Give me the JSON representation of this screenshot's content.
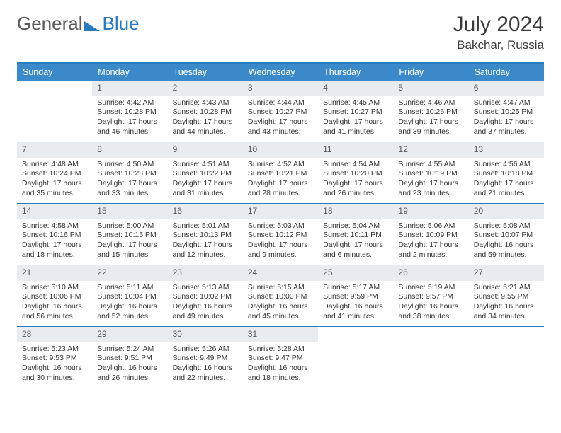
{
  "brand": {
    "part1": "General",
    "part2": "Blue"
  },
  "title": "July 2024",
  "location": "Bakchar, Russia",
  "colors": {
    "header_bg": "#3b89c9",
    "header_text": "#ffffff",
    "accent_border": "#2b7bbf",
    "daynum_bg": "#e9ecef",
    "daynum_text": "#555555",
    "body_text": "#333333",
    "background": "#ffffff"
  },
  "typography": {
    "month_title_size": 30,
    "location_size": 17,
    "day_header_size": 12.5,
    "cell_size": 10.5,
    "logo_size": 26
  },
  "layout": {
    "columns": 7,
    "rows": 5,
    "first_weekday_offset": 1
  },
  "day_names": [
    "Sunday",
    "Monday",
    "Tuesday",
    "Wednesday",
    "Thursday",
    "Friday",
    "Saturday"
  ],
  "days": [
    {
      "n": 1,
      "sr": "4:42 AM",
      "ss": "10:28 PM",
      "dl": "17 hours and 46 minutes."
    },
    {
      "n": 2,
      "sr": "4:43 AM",
      "ss": "10:28 PM",
      "dl": "17 hours and 44 minutes."
    },
    {
      "n": 3,
      "sr": "4:44 AM",
      "ss": "10:27 PM",
      "dl": "17 hours and 43 minutes."
    },
    {
      "n": 4,
      "sr": "4:45 AM",
      "ss": "10:27 PM",
      "dl": "17 hours and 41 minutes."
    },
    {
      "n": 5,
      "sr": "4:46 AM",
      "ss": "10:26 PM",
      "dl": "17 hours and 39 minutes."
    },
    {
      "n": 6,
      "sr": "4:47 AM",
      "ss": "10:25 PM",
      "dl": "17 hours and 37 minutes."
    },
    {
      "n": 7,
      "sr": "4:48 AM",
      "ss": "10:24 PM",
      "dl": "17 hours and 35 minutes."
    },
    {
      "n": 8,
      "sr": "4:50 AM",
      "ss": "10:23 PM",
      "dl": "17 hours and 33 minutes."
    },
    {
      "n": 9,
      "sr": "4:51 AM",
      "ss": "10:22 PM",
      "dl": "17 hours and 31 minutes."
    },
    {
      "n": 10,
      "sr": "4:52 AM",
      "ss": "10:21 PM",
      "dl": "17 hours and 28 minutes."
    },
    {
      "n": 11,
      "sr": "4:54 AM",
      "ss": "10:20 PM",
      "dl": "17 hours and 26 minutes."
    },
    {
      "n": 12,
      "sr": "4:55 AM",
      "ss": "10:19 PM",
      "dl": "17 hours and 23 minutes."
    },
    {
      "n": 13,
      "sr": "4:56 AM",
      "ss": "10:18 PM",
      "dl": "17 hours and 21 minutes."
    },
    {
      "n": 14,
      "sr": "4:58 AM",
      "ss": "10:16 PM",
      "dl": "17 hours and 18 minutes."
    },
    {
      "n": 15,
      "sr": "5:00 AM",
      "ss": "10:15 PM",
      "dl": "17 hours and 15 minutes."
    },
    {
      "n": 16,
      "sr": "5:01 AM",
      "ss": "10:13 PM",
      "dl": "17 hours and 12 minutes."
    },
    {
      "n": 17,
      "sr": "5:03 AM",
      "ss": "10:12 PM",
      "dl": "17 hours and 9 minutes."
    },
    {
      "n": 18,
      "sr": "5:04 AM",
      "ss": "10:11 PM",
      "dl": "17 hours and 6 minutes."
    },
    {
      "n": 19,
      "sr": "5:06 AM",
      "ss": "10:09 PM",
      "dl": "17 hours and 2 minutes."
    },
    {
      "n": 20,
      "sr": "5:08 AM",
      "ss": "10:07 PM",
      "dl": "16 hours and 59 minutes."
    },
    {
      "n": 21,
      "sr": "5:10 AM",
      "ss": "10:06 PM",
      "dl": "16 hours and 56 minutes."
    },
    {
      "n": 22,
      "sr": "5:11 AM",
      "ss": "10:04 PM",
      "dl": "16 hours and 52 minutes."
    },
    {
      "n": 23,
      "sr": "5:13 AM",
      "ss": "10:02 PM",
      "dl": "16 hours and 49 minutes."
    },
    {
      "n": 24,
      "sr": "5:15 AM",
      "ss": "10:00 PM",
      "dl": "16 hours and 45 minutes."
    },
    {
      "n": 25,
      "sr": "5:17 AM",
      "ss": "9:59 PM",
      "dl": "16 hours and 41 minutes."
    },
    {
      "n": 26,
      "sr": "5:19 AM",
      "ss": "9:57 PM",
      "dl": "16 hours and 38 minutes."
    },
    {
      "n": 27,
      "sr": "5:21 AM",
      "ss": "9:55 PM",
      "dl": "16 hours and 34 minutes."
    },
    {
      "n": 28,
      "sr": "5:23 AM",
      "ss": "9:53 PM",
      "dl": "16 hours and 30 minutes."
    },
    {
      "n": 29,
      "sr": "5:24 AM",
      "ss": "9:51 PM",
      "dl": "16 hours and 26 minutes."
    },
    {
      "n": 30,
      "sr": "5:26 AM",
      "ss": "9:49 PM",
      "dl": "16 hours and 22 minutes."
    },
    {
      "n": 31,
      "sr": "5:28 AM",
      "ss": "9:47 PM",
      "dl": "16 hours and 18 minutes."
    }
  ],
  "labels": {
    "sunrise": "Sunrise:",
    "sunset": "Sunset:",
    "daylight": "Daylight:"
  }
}
